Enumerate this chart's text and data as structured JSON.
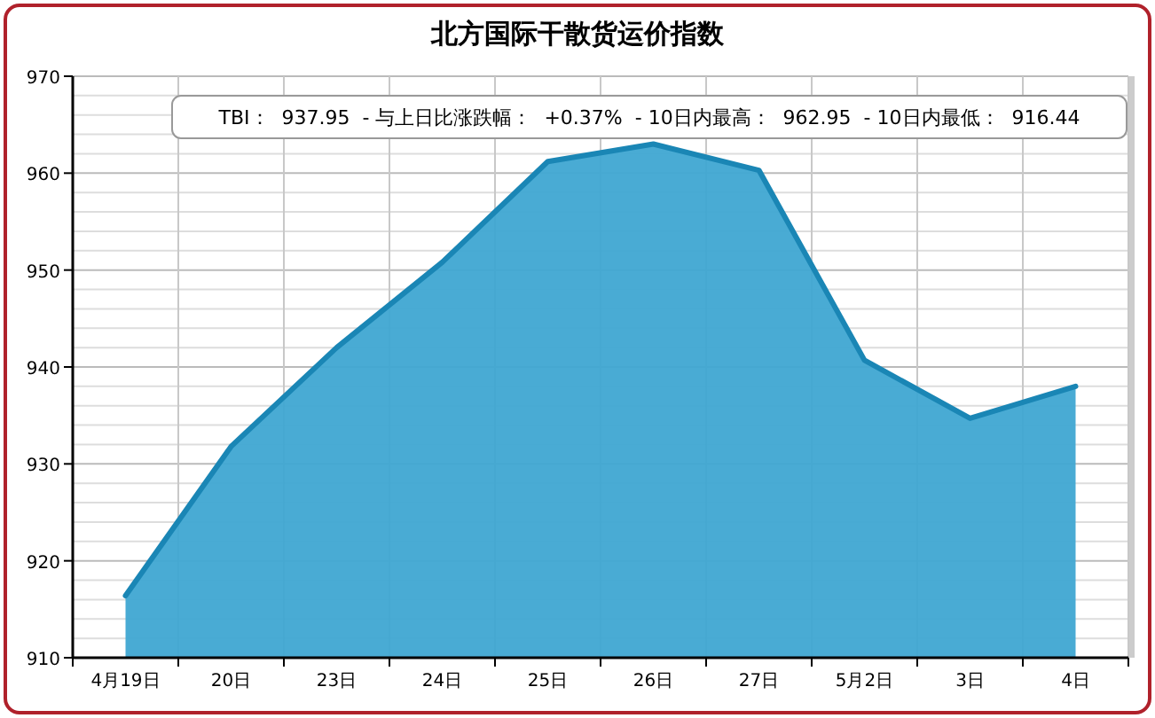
{
  "chart_data": {
    "type": "area",
    "title": "北方国际干散货运价指数",
    "annotations": [
      "TBI：  937.95  - 与上日比涨跌幅：  +0.37%  - 10日内最高：  962.95  - 10日内最低：  916.44"
    ],
    "categories": [
      "4月19日",
      "20日",
      "23日",
      "24日",
      "25日",
      "26日",
      "27日",
      "5月2日",
      "3日",
      "4日"
    ],
    "series": [
      {
        "color": "#3fa6d2",
        "values": [
          916.4,
          931.8,
          942.0,
          950.8,
          961.2,
          963.0,
          960.3,
          940.7,
          934.7,
          938.0
        ]
      }
    ],
    "ylim": [
      910,
      970
    ],
    "yticks": [
      910,
      920,
      930,
      940,
      950,
      960,
      970
    ],
    "grid": true,
    "marker": "none"
  }
}
